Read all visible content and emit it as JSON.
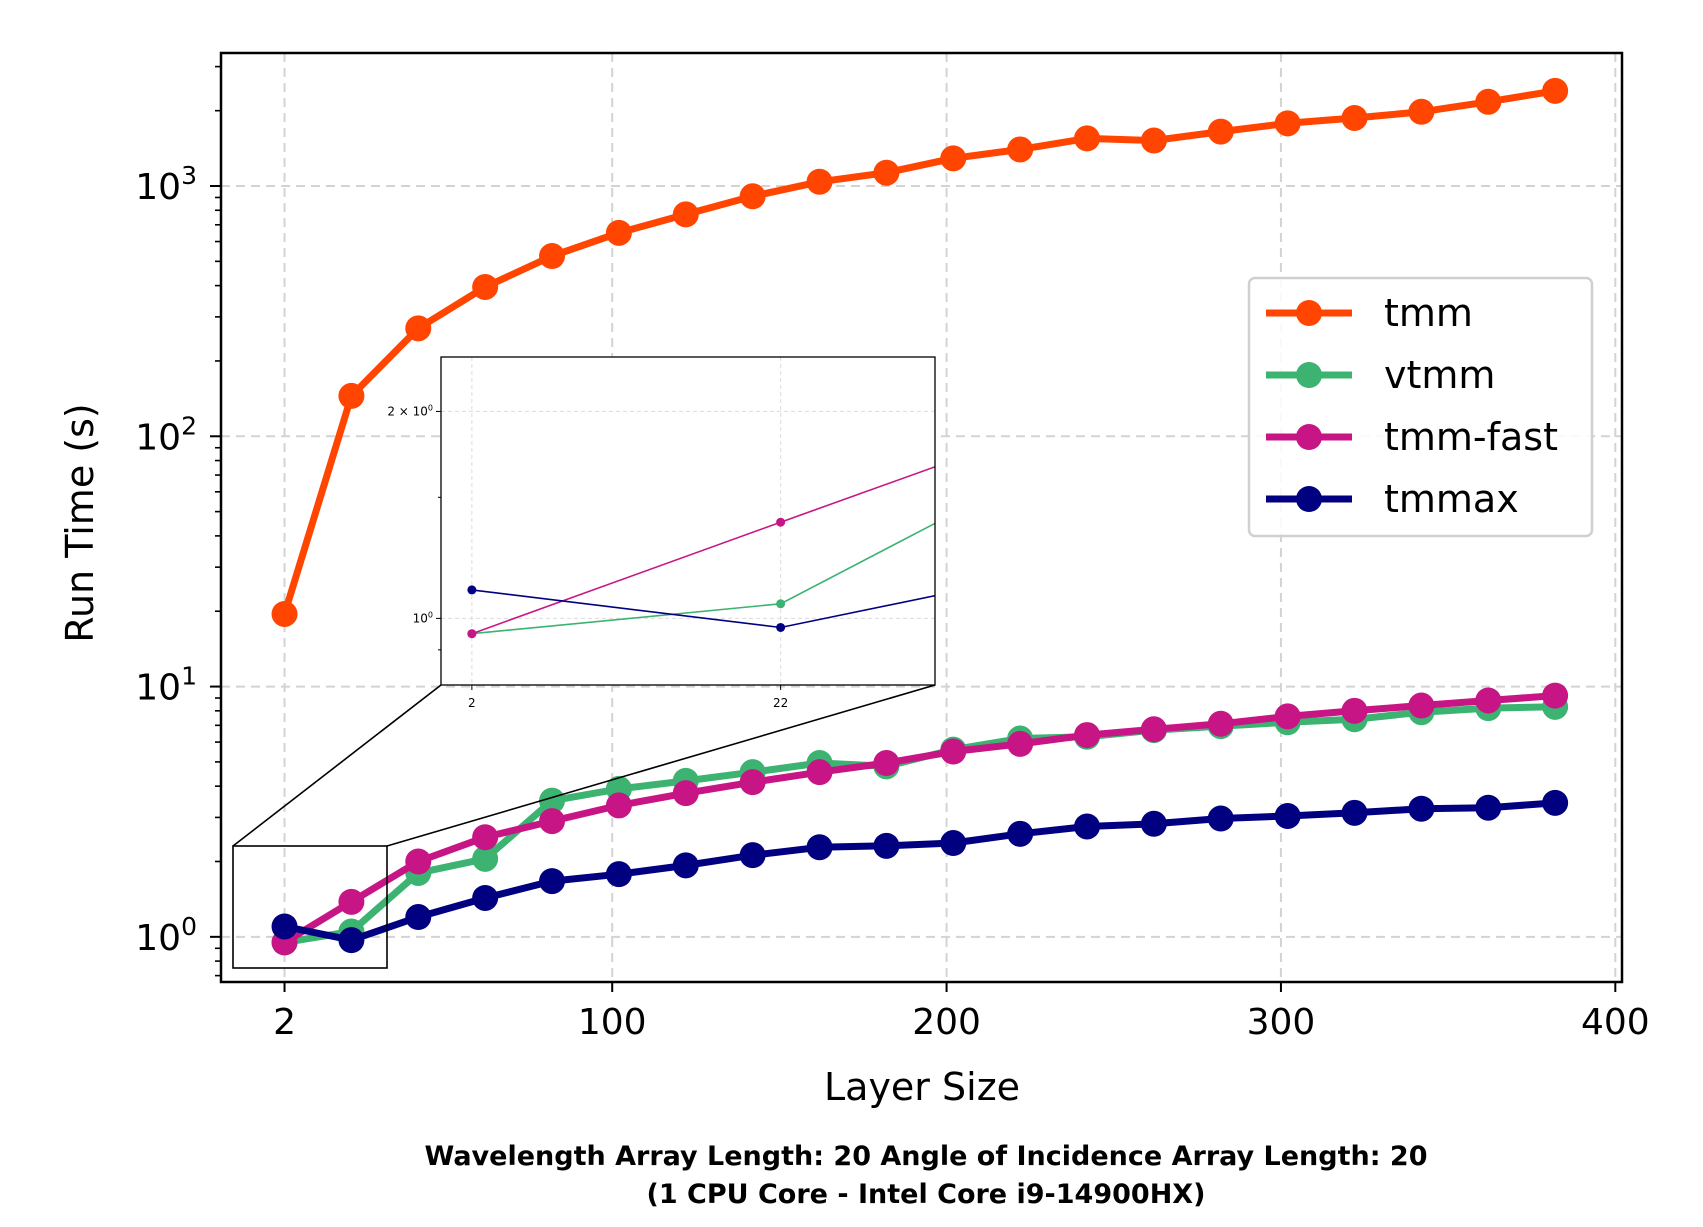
{
  "chart_data": {
    "type": "line",
    "xlabel": "Layer Size",
    "ylabel": "Run Time (s)",
    "xlim": [
      -17,
      402
    ],
    "ylim": [
      0.66,
      3400
    ],
    "yscale": "log",
    "grid": true,
    "legend_position": "center-right",
    "x_ticks": [
      {
        "value": 2,
        "label": "2"
      },
      {
        "value": 100,
        "label": "100"
      },
      {
        "value": 200,
        "label": "200"
      },
      {
        "value": 300,
        "label": "300"
      },
      {
        "value": 400,
        "label": "400"
      }
    ],
    "y_ticks": [
      {
        "value": 1,
        "base": "10",
        "exp": "0"
      },
      {
        "value": 10,
        "base": "10",
        "exp": "1"
      },
      {
        "value": 100,
        "base": "10",
        "exp": "2"
      },
      {
        "value": 1000,
        "base": "10",
        "exp": "3"
      }
    ],
    "x": [
      2,
      22,
      42,
      62,
      82,
      102,
      122,
      142,
      162,
      182,
      202,
      222,
      242,
      262,
      282,
      302,
      322,
      342,
      362,
      382
    ],
    "series": [
      {
        "name": "tmm",
        "color": "#ff4500",
        "values": [
          19.5,
          145,
          270,
          395,
          525,
          650,
          770,
          910,
          1040,
          1130,
          1290,
          1400,
          1550,
          1520,
          1650,
          1780,
          1870,
          1980,
          2170,
          2400
        ]
      },
      {
        "name": "vtmm",
        "color": "#3cb371",
        "values": [
          0.95,
          1.05,
          1.8,
          2.05,
          3.5,
          3.9,
          4.2,
          4.55,
          4.95,
          4.8,
          5.6,
          6.2,
          6.3,
          6.7,
          6.95,
          7.2,
          7.4,
          7.9,
          8.2,
          8.3
        ]
      },
      {
        "name": "tmm-fast",
        "color": "#c71585",
        "values": [
          0.95,
          1.38,
          2.0,
          2.5,
          2.9,
          3.35,
          3.75,
          4.15,
          4.55,
          4.95,
          5.5,
          5.9,
          6.4,
          6.75,
          7.1,
          7.6,
          8.0,
          8.4,
          8.8,
          9.2
        ]
      },
      {
        "name": "tmmax",
        "color": "#000080",
        "values": [
          1.1,
          0.97,
          1.2,
          1.43,
          1.67,
          1.78,
          1.93,
          2.12,
          2.28,
          2.31,
          2.37,
          2.58,
          2.76,
          2.83,
          2.97,
          3.04,
          3.13,
          3.25,
          3.28,
          3.43
        ]
      }
    ],
    "inset": {
      "xlim": [
        0,
        32
      ],
      "ylim": [
        0.8,
        2.4
      ],
      "yscale": "log",
      "x_ticks": [
        {
          "value": 2,
          "label": "2"
        },
        {
          "value": 22,
          "label": "22"
        }
      ],
      "y_ticks": [
        {
          "value": 1,
          "base": "10",
          "exp": "0"
        },
        {
          "value": 2,
          "base": "2 × 10",
          "exp": "0"
        }
      ]
    }
  },
  "caption": {
    "line1": "Wavelength Array Length: 20   Angle of Incidence Array Length: 20",
    "line2": "(1 CPU Core - Intel Core i9-14900HX)"
  }
}
